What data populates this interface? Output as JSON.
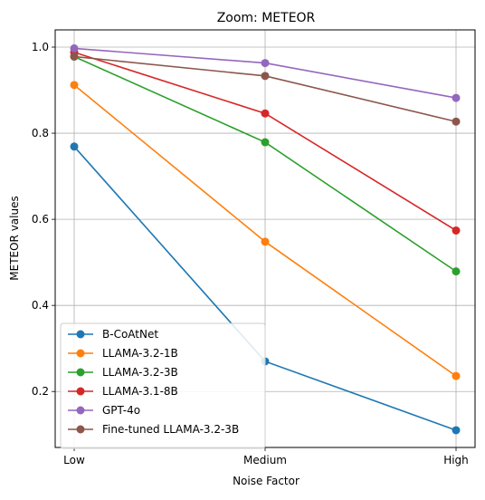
{
  "chart_data": {
    "type": "line",
    "title": "Zoom: METEOR",
    "xlabel": "Noise Factor",
    "ylabel": "METEOR values",
    "categories": [
      "Low",
      "Medium",
      "High"
    ],
    "ylim": [
      0.07,
      1.04
    ],
    "yticks": [
      "0.2",
      "0.4",
      "0.6",
      "0.8",
      "1.0"
    ],
    "grid": true,
    "legend_position": "lower-left",
    "series": [
      {
        "name": "B-CoAtNet",
        "color": "#1f77b4",
        "values": [
          0.769,
          0.27,
          0.11
        ]
      },
      {
        "name": "LLAMA-3.2-1B",
        "color": "#ff7f0e",
        "values": [
          0.912,
          0.548,
          0.236
        ]
      },
      {
        "name": "LLAMA-3.2-3B",
        "color": "#2ca02c",
        "values": [
          0.978,
          0.779,
          0.479
        ]
      },
      {
        "name": "LLAMA-3.1-8B",
        "color": "#d62728",
        "values": [
          0.988,
          0.846,
          0.574
        ]
      },
      {
        "name": "GPT-4o",
        "color": "#9467bd",
        "values": [
          0.997,
          0.963,
          0.882
        ]
      },
      {
        "name": "Fine-tuned LLAMA-3.2-3B",
        "color": "#8c564b",
        "values": [
          0.978,
          0.933,
          0.827
        ]
      }
    ]
  }
}
